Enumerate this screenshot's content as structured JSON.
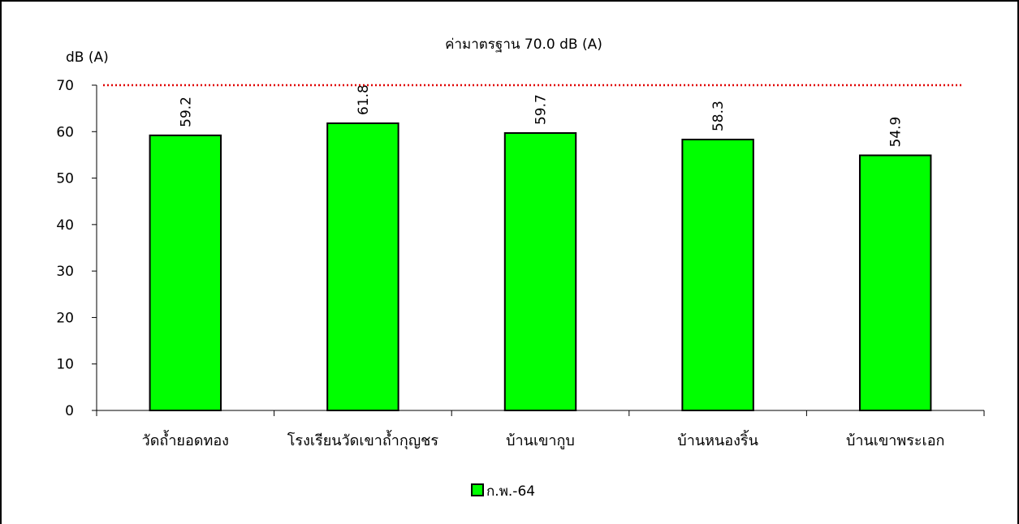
{
  "chart_data": {
    "type": "bar",
    "title": "",
    "annotation": "ค่ามาตรฐาน 70.0 dB (A)",
    "ylabel": "dB (A)",
    "xlabel": "",
    "categories": [
      "วัดถ้ำยอดทอง",
      "โรงเรียนวัดเขาถ้ำกุญชร",
      "บ้านเขากูบ",
      "บ้านหนองริ้น",
      "บ้านเขาพระเอก"
    ],
    "series": [
      {
        "name": "ก.พ.-64",
        "values": [
          59.2,
          61.8,
          59.7,
          58.3,
          54.9
        ],
        "labels": [
          "59.2",
          "61.8",
          "59.7",
          "58.3",
          "54.9"
        ],
        "color": "#00ff00"
      }
    ],
    "ylim": [
      0,
      70
    ],
    "yticks": [
      "0",
      "10",
      "20",
      "30",
      "40",
      "50",
      "60",
      "70"
    ],
    "standard_line": {
      "value": 70,
      "color": "#e00000",
      "style": "dotted"
    },
    "grid": false,
    "legend": "bottom-center"
  }
}
